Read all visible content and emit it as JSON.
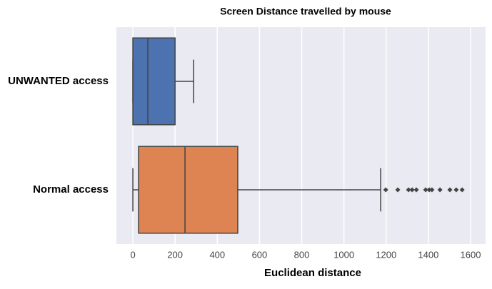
{
  "chart_data": {
    "type": "box",
    "title": "Screen Distance travelled by mouse",
    "xlabel": "Euclidean distance",
    "categories": [
      "UNWANTED access",
      "Normal access"
    ],
    "boxes": [
      {
        "color": "#4c72b0",
        "whislo": 0,
        "q1": 0,
        "med": 71,
        "q3": 200,
        "whishi": 288,
        "fliers": []
      },
      {
        "color": "#dd8452",
        "whislo": 0,
        "q1": 27,
        "med": 247,
        "q3": 497,
        "whishi": 1174,
        "fliers": [
          1198,
          1255,
          1306,
          1323,
          1343,
          1387,
          1404,
          1417,
          1455,
          1502,
          1532,
          1560
        ]
      }
    ],
    "xlim": [
      -78,
      1671
    ],
    "xticks": [
      0,
      200,
      400,
      600,
      800,
      1000,
      1200,
      1400,
      1600
    ],
    "grid": true
  }
}
